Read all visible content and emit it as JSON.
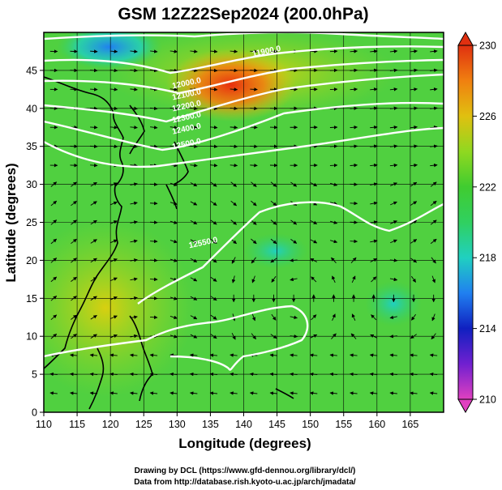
{
  "title": "GSM 12Z22Sep2024 (200.0hPa)",
  "credits": {
    "line1": "Drawing by DCL (https://www.gfd-dennou.org/library/dcl/)",
    "line2": "Data from http://database.rish.kyoto-u.ac.jp/arch/jmadata/"
  },
  "chart_data": {
    "type": "heatmap",
    "xlabel": "Longitude (degrees)",
    "ylabel": "Latitude  (degrees)",
    "xlim": [
      110,
      170
    ],
    "ylim": [
      0,
      50
    ],
    "xticks": [
      110,
      115,
      120,
      125,
      130,
      135,
      140,
      145,
      150,
      155,
      160,
      165
    ],
    "yticks": [
      0,
      5,
      10,
      15,
      20,
      25,
      30,
      35,
      40,
      45
    ],
    "colorbar": {
      "min": 210,
      "max": 230,
      "ticks": [
        210,
        214,
        218,
        222,
        226,
        230
      ],
      "colors": [
        "#e040c0",
        "#7020d0",
        "#1020c0",
        "#2080f0",
        "#20d0c0",
        "#30d060",
        "#40cc30",
        "#90d820",
        "#e0c010",
        "#f08010",
        "#e03010"
      ]
    },
    "contour_labels": [
      {
        "text": "11900.0",
        "lon": 143.5,
        "lat": 47.2
      },
      {
        "text": "12000.0",
        "lon": 131.5,
        "lat": 43.0
      },
      {
        "text": "12100.0",
        "lon": 131.5,
        "lat": 41.5
      },
      {
        "text": "12200.0",
        "lon": 131.5,
        "lat": 40.0
      },
      {
        "text": "12300.0",
        "lon": 131.5,
        "lat": 38.5
      },
      {
        "text": "12400.0",
        "lon": 131.5,
        "lat": 37.0
      },
      {
        "text": "12500.0",
        "lon": 131.5,
        "lat": 35.0
      },
      {
        "text": "12550.0",
        "lon": 134.0,
        "lat": 22.0
      }
    ]
  }
}
